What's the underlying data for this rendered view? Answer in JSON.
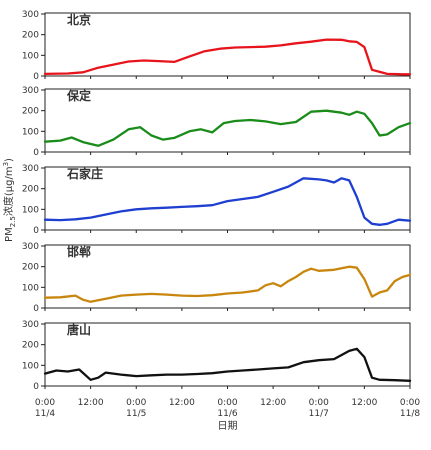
{
  "chart_data": {
    "type": "line",
    "ylabel": "PM2.5浓度(μg/m3)",
    "ylabel_main": "PM",
    "ylabel_sub": "2.5",
    "ylabel_mid": "浓度(μg/m",
    "ylabel_sup": "3",
    "ylabel_end": ")",
    "xlabel": "日期",
    "x_range": [
      0,
      96
    ],
    "x_ticks": [
      {
        "hour": 0,
        "time": "0:00",
        "date": "11/4"
      },
      {
        "hour": 12,
        "time": "12:00",
        "date": ""
      },
      {
        "hour": 24,
        "time": "0:00",
        "date": "11/5"
      },
      {
        "hour": 36,
        "time": "12:00",
        "date": ""
      },
      {
        "hour": 48,
        "time": "0:00",
        "date": "11/6"
      },
      {
        "hour": 60,
        "time": "12:00",
        "date": ""
      },
      {
        "hour": 72,
        "time": "0:00",
        "date": "11/7"
      },
      {
        "hour": 84,
        "time": "12:00",
        "date": ""
      },
      {
        "hour": 96,
        "time": "0:00",
        "date": "11/8"
      }
    ],
    "panels": [
      {
        "name": "北京",
        "color": "#e8141c",
        "ylim": [
          0,
          300
        ],
        "yticks": [
          0,
          100,
          200,
          300
        ],
        "x": [
          0,
          6,
          10,
          14,
          18,
          22,
          26,
          30,
          34,
          38,
          42,
          46,
          50,
          54,
          58,
          62,
          66,
          70,
          74,
          78,
          80,
          82,
          84,
          86,
          90,
          94,
          96
        ],
        "y": [
          10,
          12,
          18,
          40,
          55,
          70,
          75,
          72,
          68,
          95,
          120,
          132,
          138,
          140,
          142,
          148,
          158,
          166,
          176,
          175,
          168,
          165,
          140,
          30,
          10,
          8,
          8
        ]
      },
      {
        "name": "保定",
        "color": "#1a8c1a",
        "ylim": [
          0,
          300
        ],
        "yticks": [
          0,
          100,
          200,
          300
        ],
        "x": [
          0,
          4,
          7,
          10,
          14,
          18,
          22,
          25,
          28,
          31,
          34,
          38,
          41,
          44,
          47,
          50,
          54,
          58,
          62,
          66,
          70,
          74,
          78,
          80,
          82,
          84,
          86,
          88,
          90,
          93,
          96
        ],
        "y": [
          50,
          55,
          70,
          48,
          30,
          60,
          110,
          120,
          80,
          60,
          68,
          100,
          110,
          95,
          140,
          150,
          155,
          148,
          135,
          145,
          195,
          200,
          190,
          180,
          195,
          185,
          140,
          80,
          85,
          120,
          140
        ]
      },
      {
        "name": "石家庄",
        "color": "#1f3fd1",
        "ylim": [
          0,
          300
        ],
        "yticks": [
          0,
          100,
          200,
          300
        ],
        "x": [
          0,
          4,
          8,
          12,
          16,
          20,
          24,
          28,
          32,
          36,
          40,
          44,
          48,
          52,
          56,
          60,
          64,
          68,
          72,
          74,
          76,
          78,
          80,
          82,
          84,
          86,
          88,
          90,
          93,
          96
        ],
        "y": [
          50,
          48,
          52,
          60,
          75,
          90,
          100,
          105,
          108,
          112,
          115,
          120,
          140,
          150,
          160,
          185,
          210,
          250,
          245,
          240,
          230,
          250,
          240,
          160,
          60,
          30,
          25,
          30,
          50,
          45
        ]
      },
      {
        "name": "邯郸",
        "color": "#c8860e",
        "ylim": [
          0,
          300
        ],
        "yticks": [
          0,
          100,
          200,
          300
        ],
        "x": [
          0,
          4,
          8,
          10,
          12,
          16,
          20,
          24,
          28,
          32,
          36,
          40,
          44,
          48,
          52,
          56,
          58,
          60,
          62,
          64,
          66,
          68,
          70,
          72,
          76,
          80,
          82,
          84,
          86,
          88,
          90,
          92,
          94,
          96
        ],
        "y": [
          50,
          52,
          60,
          40,
          30,
          45,
          60,
          65,
          68,
          65,
          60,
          58,
          62,
          70,
          75,
          85,
          110,
          120,
          105,
          130,
          150,
          175,
          190,
          180,
          185,
          200,
          195,
          140,
          55,
          75,
          85,
          130,
          150,
          160
        ]
      },
      {
        "name": "唐山",
        "color": "#111111",
        "ylim": [
          0,
          300
        ],
        "yticks": [
          0,
          100,
          200,
          300
        ],
        "x": [
          0,
          3,
          6,
          9,
          12,
          14,
          16,
          20,
          24,
          28,
          32,
          36,
          40,
          44,
          48,
          52,
          56,
          60,
          64,
          68,
          72,
          76,
          80,
          82,
          84,
          86,
          88,
          92,
          96
        ],
        "y": [
          60,
          75,
          70,
          80,
          30,
          40,
          65,
          55,
          48,
          52,
          55,
          55,
          58,
          62,
          70,
          75,
          80,
          85,
          90,
          115,
          125,
          130,
          170,
          180,
          140,
          40,
          30,
          28,
          25
        ]
      }
    ]
  }
}
